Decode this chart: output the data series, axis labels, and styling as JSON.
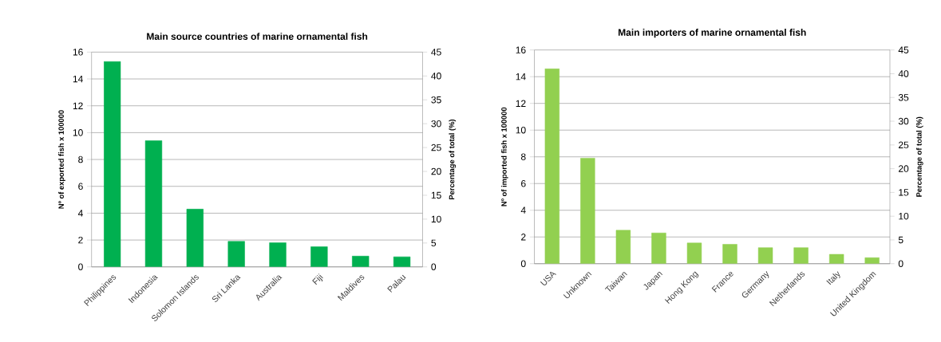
{
  "chart_data": [
    {
      "type": "bar",
      "title": "Main source countries of marine ornamental fish",
      "ylabel": "Nº of exported fish x 100000",
      "y2label": "Percentage of total (%)",
      "categories": [
        "Philippines",
        "Indonesia",
        "Solomon Islands",
        "Sri Lanka",
        "Australia",
        "Fiji",
        "Maldives",
        "Palau"
      ],
      "values": [
        15.3,
        9.4,
        4.3,
        1.9,
        1.8,
        1.5,
        0.8,
        0.75
      ],
      "color": "#00b050",
      "ylim": [
        0,
        16
      ],
      "yticks": [
        0,
        2,
        4,
        6,
        8,
        10,
        12,
        14,
        16
      ],
      "y2lim": [
        0,
        45
      ],
      "y2ticks": [
        0,
        5,
        10,
        15,
        20,
        25,
        30,
        35,
        40,
        45
      ],
      "grid": "y"
    },
    {
      "type": "bar",
      "title": "Main importers of marine ornamental fish",
      "ylabel": "Nº of imported fish x 100000",
      "y2label": "Percentage of total (%)",
      "categories": [
        "USA",
        "Unknown",
        "Taiwan",
        "Japan",
        "Hong Kong",
        "France",
        "Germany",
        "Netherlands",
        "Italy",
        "United Kingdom"
      ],
      "values": [
        14.6,
        7.9,
        2.5,
        2.3,
        1.55,
        1.45,
        1.2,
        1.2,
        0.7,
        0.45
      ],
      "color": "#92d050",
      "ylim": [
        0,
        16
      ],
      "yticks": [
        0,
        2,
        4,
        6,
        8,
        10,
        12,
        14,
        16
      ],
      "y2lim": [
        0,
        45
      ],
      "y2ticks": [
        0,
        5,
        10,
        15,
        20,
        25,
        30,
        35,
        40,
        45
      ],
      "grid": "y"
    }
  ]
}
